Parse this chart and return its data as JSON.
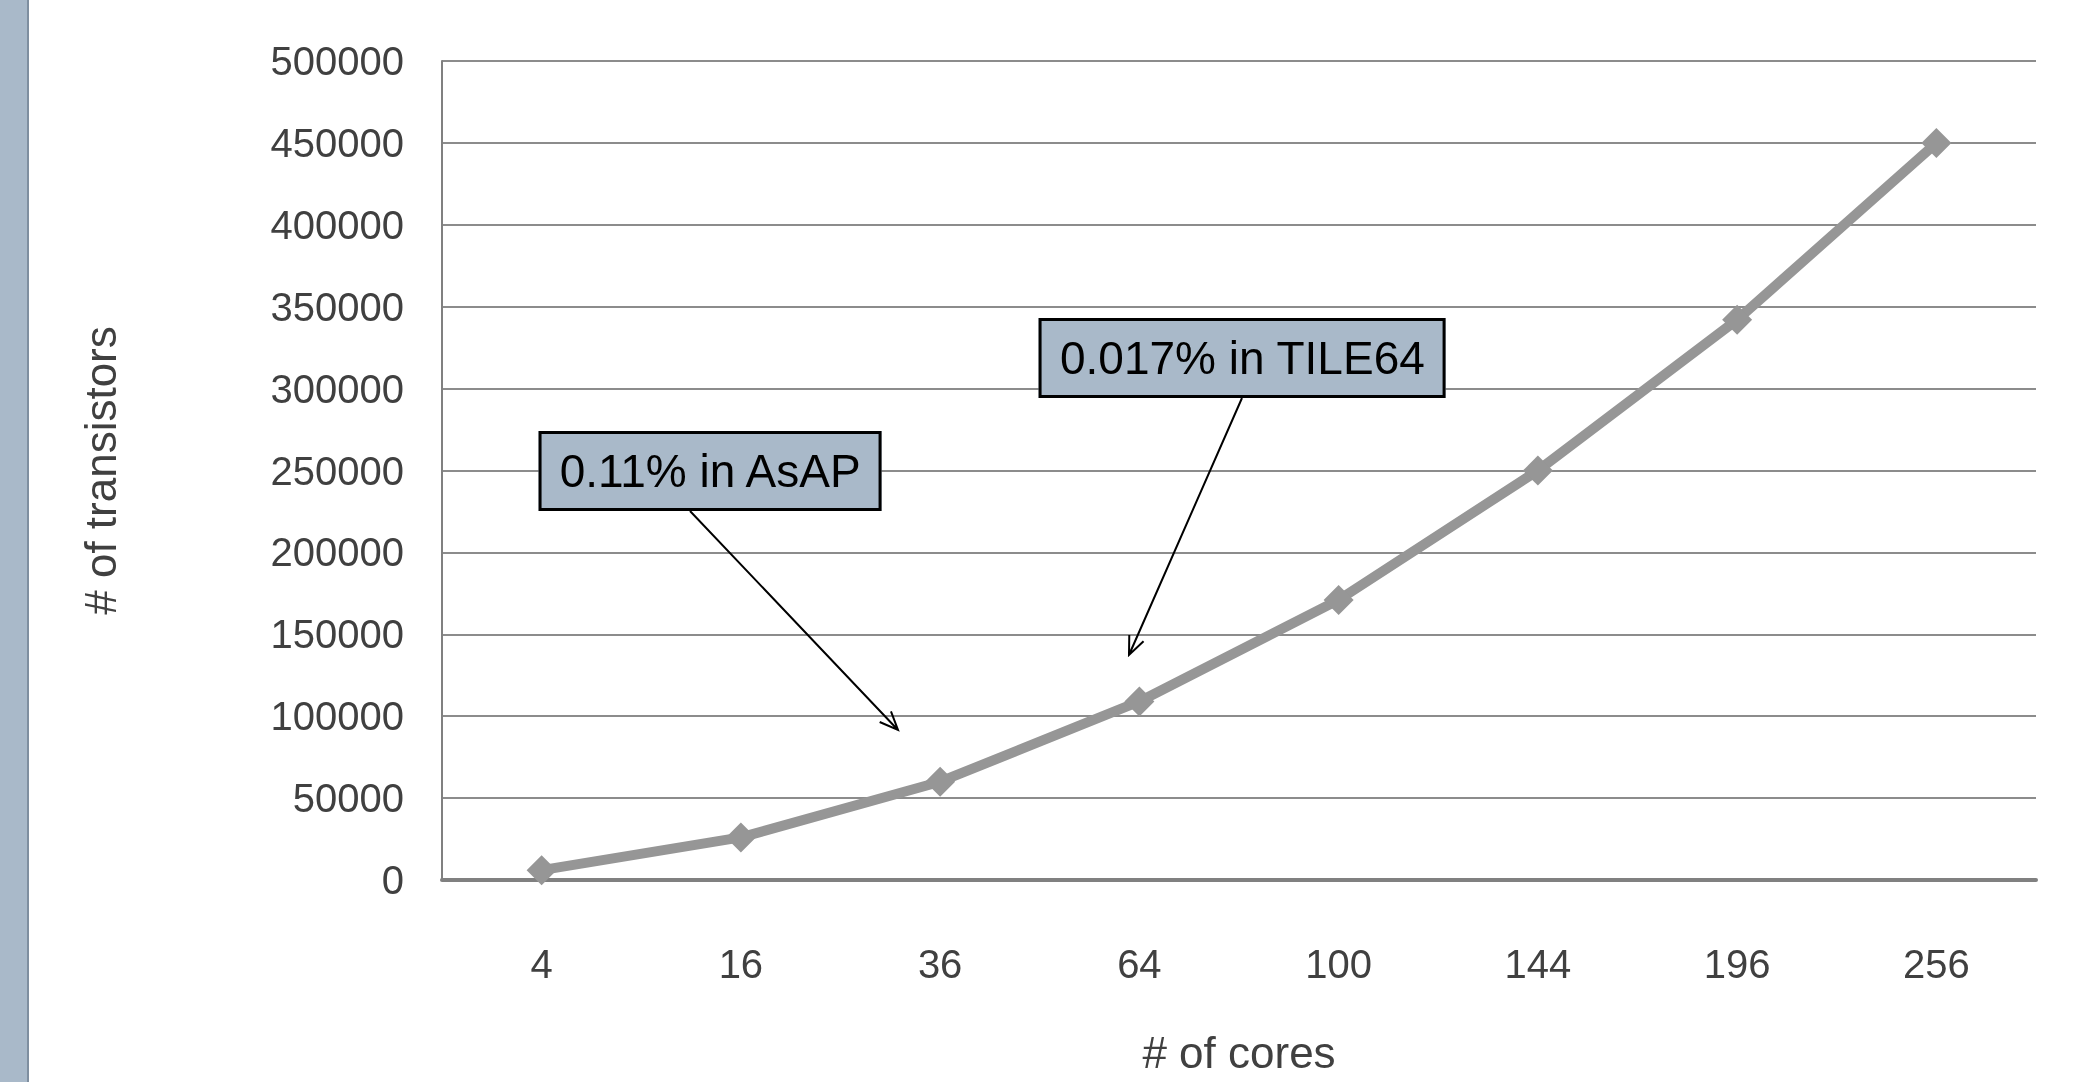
{
  "chart_data": {
    "type": "line",
    "xlabel": "# of cores",
    "ylabel": "# of transistors",
    "categories": [
      "4",
      "16",
      "36",
      "64",
      "100",
      "144",
      "196",
      "256"
    ],
    "series": [
      {
        "color": "#969696",
        "values": [
          6000,
          26000,
          60000,
          109000,
          171000,
          250000,
          342000,
          450000
        ]
      }
    ],
    "ylim": [
      0,
      500000
    ],
    "yticks": [
      0,
      50000,
      100000,
      150000,
      200000,
      250000,
      300000,
      350000,
      400000,
      450000,
      500000
    ],
    "grid": "y",
    "marker": "diamond",
    "line_style": "solid",
    "annotations": [
      "0.11% in AsAP",
      "0.017% in TILE64"
    ]
  }
}
